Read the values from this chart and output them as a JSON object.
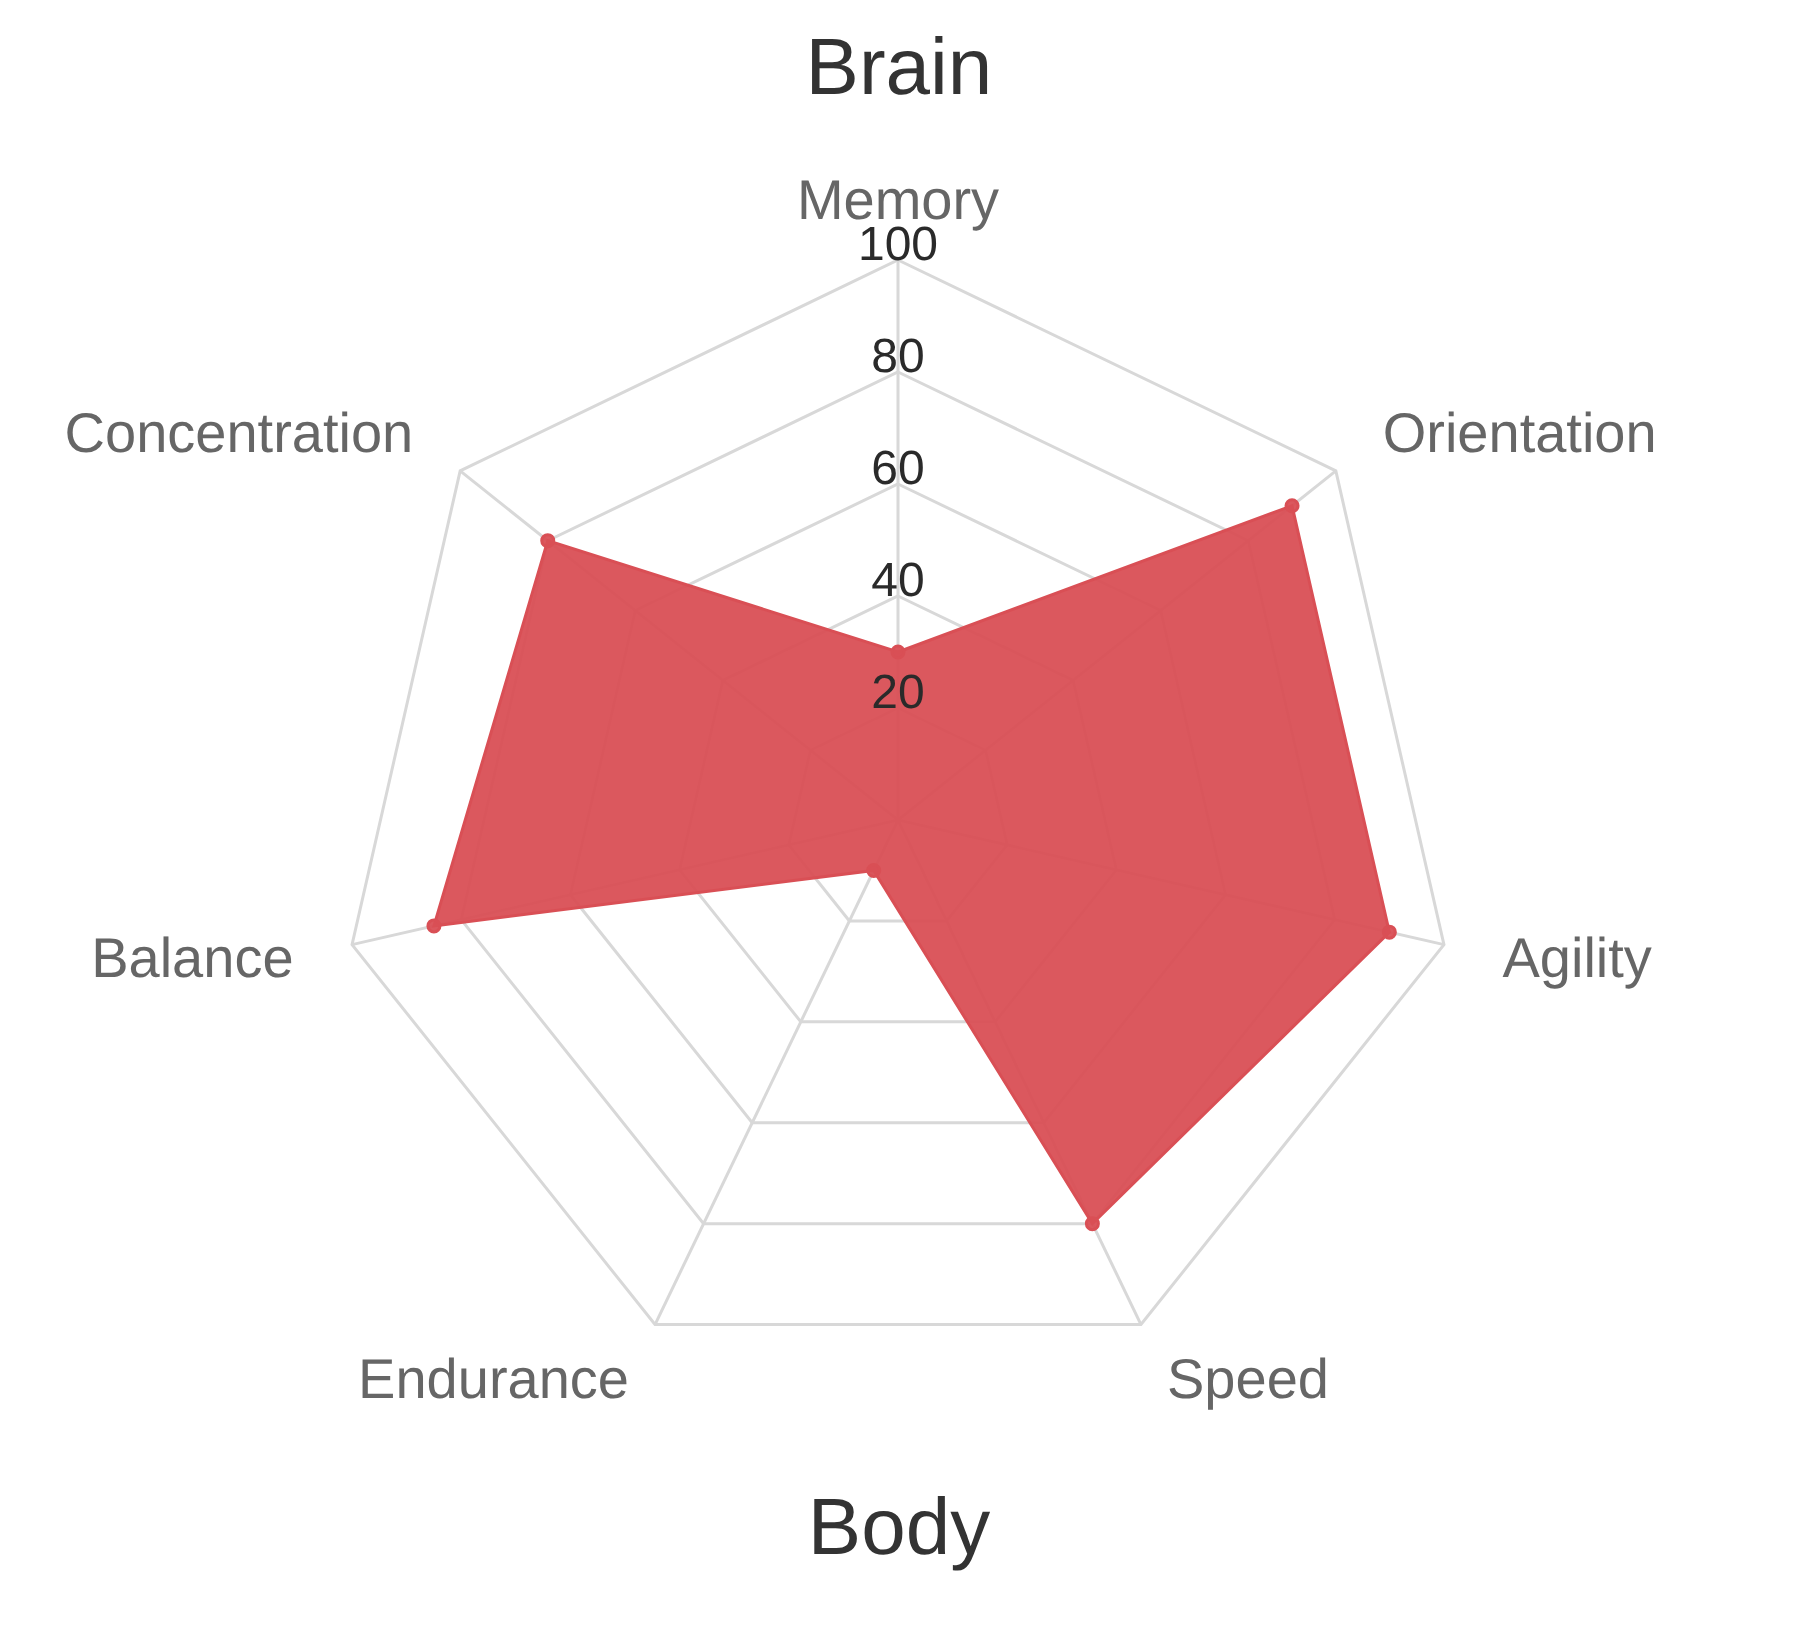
{
  "chart_data": {
    "type": "radar",
    "title": "Brain",
    "annotations": [
      "Body"
    ],
    "categories": [
      "Memory",
      "Orientation",
      "Agility",
      "Speed",
      "Endurance",
      "Balance",
      "Concentration"
    ],
    "series": [
      {
        "color": "#d94f55",
        "values": [
          30,
          90,
          90,
          80,
          10,
          85,
          80
        ]
      }
    ],
    "ylim": [
      0,
      100
    ],
    "yticks": [
      20,
      40,
      60,
      80,
      100
    ],
    "grid": true,
    "marker": "circle"
  }
}
